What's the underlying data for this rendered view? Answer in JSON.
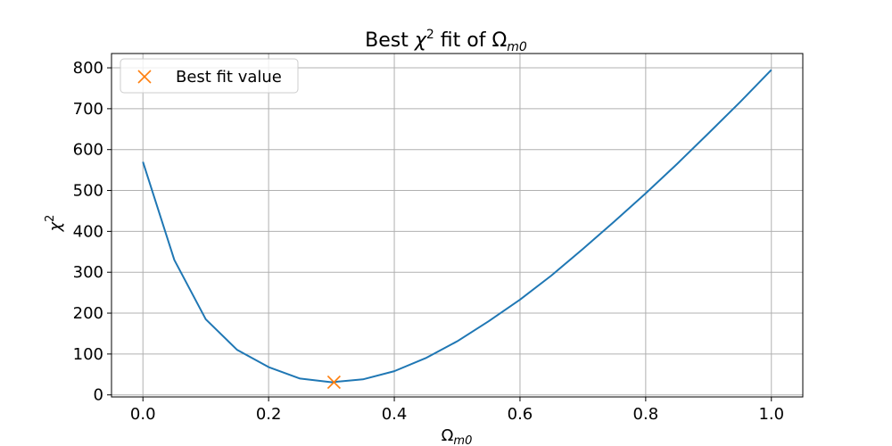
{
  "chart_data": {
    "type": "line",
    "title": {
      "prefix": "Best ",
      "chi": "χ",
      "sup": "2",
      "middle": " fit of ",
      "omega": "Ω",
      "sub": "m0"
    },
    "xlabel": {
      "omega": "Ω",
      "sub": "m0"
    },
    "ylabel": {
      "chi": "χ",
      "sup": "2"
    },
    "xlim": [
      -0.05,
      1.05
    ],
    "ylim": [
      -5,
      835
    ],
    "x_ticks": [
      0.0,
      0.2,
      0.4,
      0.6,
      0.8,
      1.0
    ],
    "x_tick_labels": [
      "0.0",
      "0.2",
      "0.4",
      "0.6",
      "0.8",
      "1.0"
    ],
    "y_ticks": [
      0,
      100,
      200,
      300,
      400,
      500,
      600,
      700,
      800
    ],
    "y_tick_labels": [
      "0",
      "100",
      "200",
      "300",
      "400",
      "500",
      "600",
      "700",
      "800"
    ],
    "grid": true,
    "legend_position": "top-left",
    "series": [
      {
        "color": "#1f77b4",
        "x": [
          0.0,
          0.05,
          0.1,
          0.15,
          0.2,
          0.25,
          0.3,
          0.35,
          0.4,
          0.45,
          0.5,
          0.55,
          0.6,
          0.65,
          0.7,
          0.75,
          0.8,
          0.85,
          0.9,
          0.95,
          1.0
        ],
        "y": [
          570,
          330,
          185,
          110,
          68,
          40,
          31,
          38,
          58,
          90,
          131,
          180,
          233,
          292,
          357,
          424,
          493,
          565,
          640,
          716,
          795
        ]
      }
    ],
    "best_fit": {
      "name": "Best fit value",
      "x": 0.304,
      "y": 31,
      "color": "#ff7f0e"
    }
  }
}
